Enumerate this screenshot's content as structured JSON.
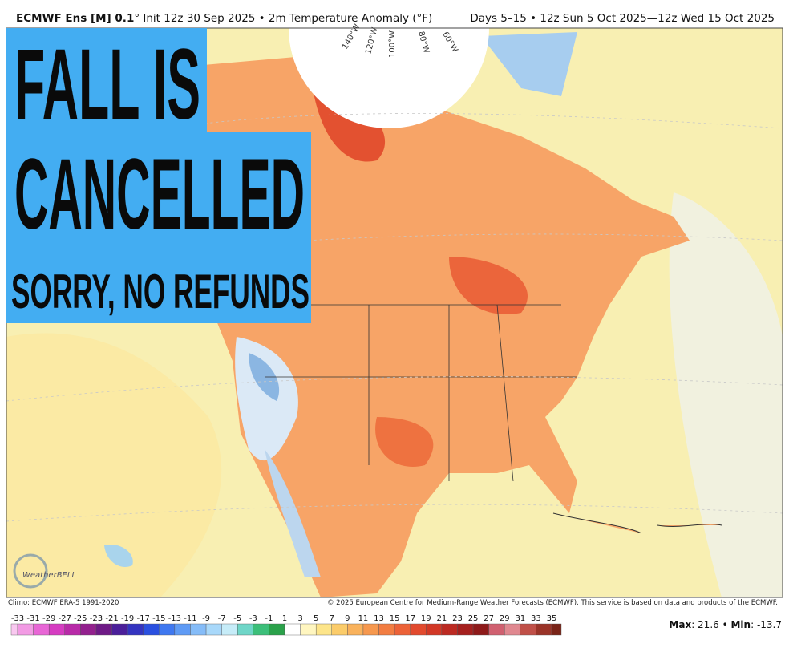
{
  "header": {
    "title_bold": "ECMWF Ens [M] 0.1",
    "title_rest": "° Init 12z 30 Sep 2025 • 2m Temperature Anomaly (°F)",
    "right": "Days 5–15 • 12z Sun 5 Oct 2025—12z Wed 15 Oct 2025"
  },
  "overlay": {
    "line1": "FALL IS",
    "line2": "CANCELLED",
    "line3": "SORRY, NO REFUNDS"
  },
  "map": {
    "longitude_labels": [
      "140°W",
      "120°W",
      "100°W",
      "80°W",
      "60°W"
    ],
    "logo": "WeatherBELL"
  },
  "footer": {
    "climo": "Climo: ECMWF ERA-5 1991-2020",
    "copyright": "© 2025 European Centre for Medium-Range Weather Forecasts (ECMWF). This service is based on data and products of the ECMWF."
  },
  "colorbar": {
    "labels": [
      -33,
      -31,
      -29,
      -27,
      -25,
      -23,
      -21,
      -19,
      -17,
      -15,
      -13,
      -11,
      -9,
      -7,
      -5,
      -3,
      -1,
      1,
      3,
      5,
      7,
      9,
      11,
      13,
      15,
      17,
      19,
      21,
      23,
      25,
      27,
      29,
      31,
      33,
      35
    ],
    "colors": [
      "#f9c8f0",
      "#f29be4",
      "#e866d6",
      "#d63cc2",
      "#b82aa8",
      "#93208e",
      "#6e1a86",
      "#4b1f9a",
      "#3434c0",
      "#2a50e0",
      "#3f78f0",
      "#5f9bf5",
      "#85bcf8",
      "#a8d8fa",
      "#c6ecf8",
      "#6fd6c8",
      "#3cbf7a",
      "#2aa14a",
      "#ffffff",
      "#fff6c0",
      "#fde58a",
      "#fbcc6a",
      "#f9b25c",
      "#f6984e",
      "#f27d42",
      "#ec6238",
      "#e24a2e",
      "#d23826",
      "#bc2a22",
      "#a5201e",
      "#8e1a1a",
      "#d06070",
      "#e08890",
      "#c05048",
      "#9a3428",
      "#7a2418"
    ]
  },
  "stats": {
    "max_label": "Max",
    "max_text": ": 21.6 • ",
    "min_label": "Min",
    "min_text": ": -13.7"
  }
}
